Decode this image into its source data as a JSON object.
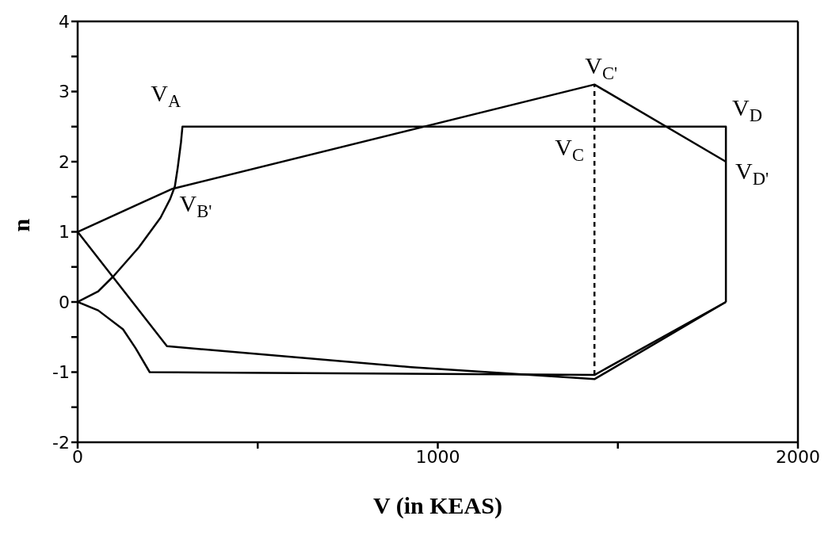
{
  "chart_data": {
    "type": "line",
    "xlabel": "V (in KEAS)",
    "ylabel": "n",
    "xlim": [
      0,
      2000
    ],
    "ylim": [
      -2,
      4
    ],
    "xticks": [
      0,
      {
        "value": 500,
        "label": null
      },
      1000,
      {
        "value": 1500,
        "label": null
      },
      2000
    ],
    "yticks": [
      -2,
      {
        "value": -1.5,
        "label": null
      },
      -1,
      {
        "value": -0.5,
        "label": null
      },
      0,
      {
        "value": 0.5,
        "label": null
      },
      1,
      {
        "value": 1.5,
        "label": null
      },
      2,
      {
        "value": 2.5,
        "label": null
      },
      3,
      {
        "value": 3.5,
        "label": null
      },
      4
    ],
    "grid": false,
    "marker": "none",
    "line_style": "solid",
    "series": [
      {
        "color": "#000000",
        "line_style": "dashed",
        "x": [
          1435,
          1435
        ],
        "values": [
          -1.04,
          3.1
        ]
      },
      {
        "color": "#000000",
        "x": [
          0,
          57,
          100,
          170,
          230,
          257,
          270,
          278,
          287,
          291,
          1800,
          1800
        ],
        "values": [
          0,
          0.15,
          0.37,
          0.78,
          1.2,
          1.47,
          1.65,
          1.92,
          2.28,
          2.5,
          2.5,
          0
        ]
      },
      {
        "color": "#000000",
        "x": [
          0,
          57,
          126,
          161,
          200,
          1435,
          1800
        ],
        "values": [
          0,
          -0.12,
          -0.39,
          -0.66,
          -1,
          -1.04,
          0
        ]
      },
      {
        "color": "#000000",
        "x": [
          0,
          261,
          1435,
          1800
        ],
        "values": [
          1,
          1.61,
          3.1,
          2
        ]
      },
      {
        "color": "#000000",
        "x": [
          0,
          248,
          926,
          1435,
          1800
        ],
        "values": [
          1,
          -0.63,
          -0.93,
          -1.1,
          0
        ]
      }
    ],
    "annotations": [
      {
        "text": "V$_{A}$",
        "x": 291,
        "y": 2.5
      },
      {
        "text": "V$_{B'}$",
        "x": 261,
        "y": 1.61
      },
      {
        "text": "V$_{C'}$",
        "x": 1435,
        "y": 3.1
      },
      {
        "text": "V$_{C}$",
        "x": 1435,
        "y": 2.5
      },
      {
        "text": "V$_{D}$",
        "x": 1800,
        "y": 2.5
      },
      {
        "text": "V$_{D'}$",
        "x": 1800,
        "y": 2
      }
    ]
  }
}
